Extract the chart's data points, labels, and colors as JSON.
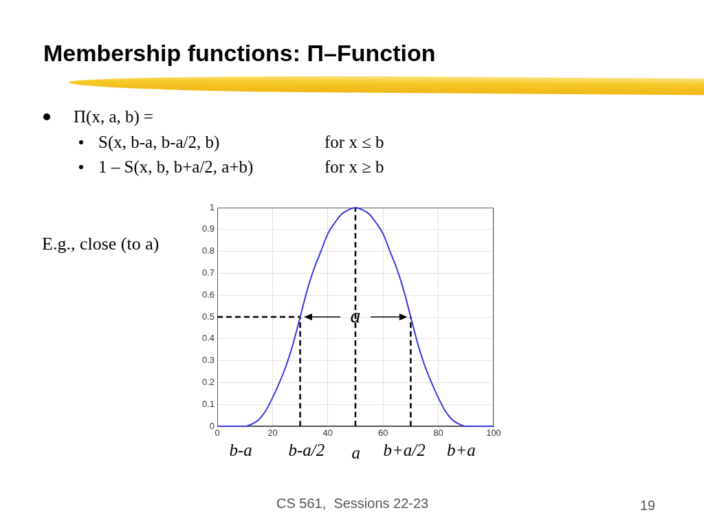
{
  "chart_data": {
    "type": "line",
    "title": "Membership functions: Π–Function",
    "annotations": [
      "Π(x, a, b) =",
      "S(x, b-a, b-a/2, b)",
      "for x ≤ b",
      "1 – S(x, b, b+a/2, a+b)",
      "for x ≥ b",
      "E.g., close (to a)",
      {
        "text": "a",
        "x": 50,
        "y": 0.5
      },
      "b-a",
      "b-a/2",
      "a",
      "b+a/2",
      "b+a",
      "CS 561,  Sessions 22-23",
      "19"
    ],
    "series": [
      {
        "color": "#3535e0",
        "x": [
          0,
          10,
          12.5,
          15,
          17.5,
          20,
          22.5,
          25,
          27.5,
          30,
          32.5,
          35,
          37.5,
          40,
          42.5,
          45,
          47.5,
          50,
          52.5,
          55,
          57.5,
          60,
          62.5,
          65,
          67.5,
          70,
          72.5,
          75,
          77.5,
          80,
          82.5,
          85,
          87.5,
          90,
          100
        ],
        "values": [
          0,
          0,
          0.01,
          0.03,
          0.07,
          0.13,
          0.2,
          0.28,
          0.38,
          0.5,
          0.62,
          0.72,
          0.8,
          0.88,
          0.93,
          0.97,
          0.99,
          1,
          0.99,
          0.97,
          0.93,
          0.88,
          0.8,
          0.72,
          0.62,
          0.5,
          0.38,
          0.28,
          0.2,
          0.13,
          0.07,
          0.03,
          0.01,
          0,
          0
        ]
      },
      {
        "color": "#000000",
        "line_style": "dashed",
        "x": [
          0,
          30
        ],
        "values": [
          0.5,
          0.5
        ]
      },
      {
        "color": "#000000",
        "line_style": "dashed",
        "x": [
          30,
          30
        ],
        "values": [
          0,
          0.5
        ]
      },
      {
        "color": "#000000",
        "line_style": "dashed",
        "x": [
          50,
          50
        ],
        "values": [
          0,
          1
        ]
      },
      {
        "color": "#000000",
        "line_style": "dashed",
        "x": [
          70,
          70
        ],
        "values": [
          0,
          0.5
        ]
      }
    ],
    "xlim": [
      0,
      100
    ],
    "ylim": [
      0,
      1
    ],
    "xticks": [
      0,
      20,
      40,
      60,
      80,
      100
    ],
    "yticks": [
      0,
      0.1,
      0.2,
      0.3,
      0.4,
      0.5,
      0.6,
      0.7,
      0.8,
      0.9,
      1
    ],
    "grid": true
  }
}
